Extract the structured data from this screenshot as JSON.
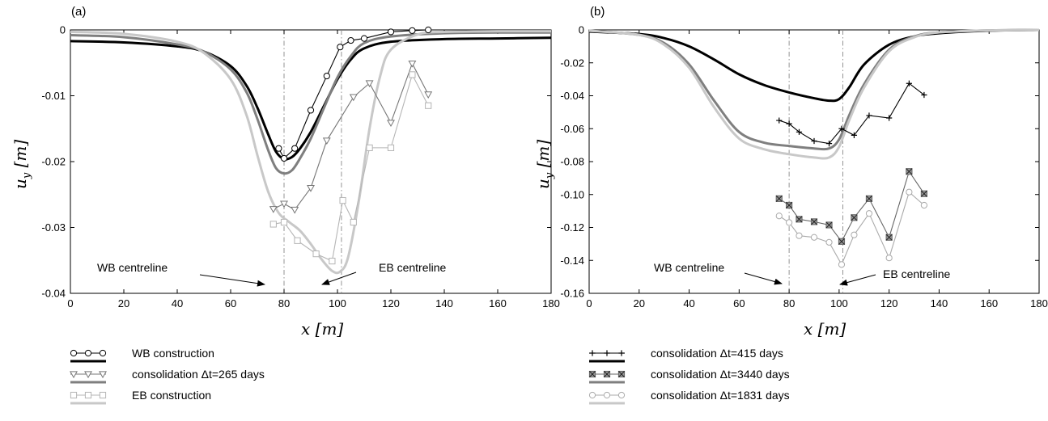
{
  "chart_data": [
    {
      "type": "line",
      "panel_label": "(a)",
      "xlabel_var": "x",
      "xlabel_unit": "[m]",
      "ylabel_var": "u",
      "ylabel_sub": "y",
      "ylabel_unit": "[m]",
      "xlim": [
        0,
        180
      ],
      "ylim": [
        -0.04,
        0
      ],
      "xticks": [
        0,
        20,
        40,
        60,
        80,
        100,
        120,
        140,
        160,
        180
      ],
      "xtick_labels": [
        "0",
        "20",
        "40",
        "60",
        "80",
        "100",
        "120",
        "140",
        "160",
        "180"
      ],
      "yticks": [
        0,
        -0.01,
        -0.02,
        -0.03,
        -0.04
      ],
      "ytick_labels": [
        "0",
        "-0.01",
        "-0.02",
        "-0.03",
        "-0.04"
      ],
      "vlines": [
        80,
        101.5
      ],
      "annotations": [
        {
          "text": "WB centreline",
          "target": [
            80,
            -0.04
          ]
        },
        {
          "text": "EB centreline",
          "target": [
            101.5,
            -0.04
          ]
        }
      ],
      "series": [
        {
          "name": "WB construction",
          "kind": "measured",
          "marker": "circle",
          "color": "#000000",
          "x": [
            78,
            80,
            84,
            90,
            96,
            101,
            105,
            110,
            120,
            128,
            134
          ],
          "y": [
            -0.018,
            -0.0195,
            -0.018,
            -0.0122,
            -0.007,
            -0.0026,
            -0.0016,
            -0.0013,
            -0.0003,
            -0.0001,
            0
          ]
        },
        {
          "name": "consolidation Δt=265 days",
          "kind": "measured",
          "marker": "triangle",
          "color": "#777777",
          "x": [
            76,
            80,
            84,
            90,
            96,
            106,
            112,
            120,
            128,
            134
          ],
          "y": [
            -0.0272,
            -0.0264,
            -0.0273,
            -0.024,
            -0.0168,
            -0.0102,
            -0.0081,
            -0.0141,
            -0.0051,
            -0.0098
          ]
        },
        {
          "name": "EB construction",
          "kind": "measured",
          "marker": "square",
          "color": "#b5b5b5",
          "x": [
            76,
            80,
            85,
            92,
            98,
            102,
            106,
            112,
            120,
            128,
            134
          ],
          "y": [
            -0.0295,
            -0.0292,
            -0.032,
            -0.034,
            -0.0351,
            -0.0259,
            -0.0292,
            -0.0179,
            -0.0179,
            -0.0068,
            -0.0115
          ]
        },
        {
          "name": "WB construction",
          "kind": "fem",
          "color": "#000000",
          "x": [
            0,
            20,
            40,
            50,
            60,
            66,
            70,
            74,
            77,
            80,
            83,
            86,
            90,
            95,
            100,
            105,
            110,
            120,
            140,
            160,
            180
          ],
          "y": [
            -0.0017,
            -0.0019,
            -0.0025,
            -0.0033,
            -0.0055,
            -0.0085,
            -0.0118,
            -0.0158,
            -0.0185,
            -0.0196,
            -0.0193,
            -0.018,
            -0.0155,
            -0.0115,
            -0.0075,
            -0.0045,
            -0.0028,
            -0.0018,
            -0.0014,
            -0.0013,
            -0.0012
          ]
        },
        {
          "name": "consolidation Δt=265 days",
          "kind": "fem",
          "color": "#7f7f7f",
          "x": [
            0,
            20,
            40,
            50,
            60,
            66,
            70,
            74,
            77,
            80,
            83,
            86,
            90,
            95,
            100,
            105,
            110,
            120,
            140,
            160,
            180
          ],
          "y": [
            -0.0008,
            -0.0011,
            -0.0022,
            -0.0033,
            -0.006,
            -0.0095,
            -0.0135,
            -0.0182,
            -0.021,
            -0.0218,
            -0.0213,
            -0.0195,
            -0.0165,
            -0.0118,
            -0.0072,
            -0.004,
            -0.002,
            -0.001,
            -0.0005,
            -0.0004,
            -0.0004
          ]
        },
        {
          "name": "EB construction",
          "kind": "fem",
          "color": "#c8c8c8",
          "x": [
            0,
            20,
            40,
            50,
            60,
            66,
            70,
            74,
            78,
            82,
            86,
            90,
            94,
            98,
            101,
            104,
            108,
            112,
            116,
            120,
            130,
            140,
            160,
            180
          ],
          "y": [
            -0.0003,
            -0.0006,
            -0.0018,
            -0.0035,
            -0.0075,
            -0.013,
            -0.019,
            -0.0245,
            -0.0278,
            -0.0292,
            -0.0305,
            -0.0325,
            -0.0348,
            -0.0366,
            -0.0367,
            -0.0345,
            -0.026,
            -0.015,
            -0.007,
            -0.003,
            -0.0007,
            -0.0003,
            -0.0002,
            -0.0002
          ]
        }
      ],
      "legend": [
        {
          "label": "WB construction",
          "marker": "circle",
          "marker_color": "#000000",
          "line_color": "#000000"
        },
        {
          "label": "consolidation Δt=265 days",
          "marker": "triangle",
          "marker_color": "#777777",
          "line_color": "#7f7f7f"
        },
        {
          "label": "EB construction",
          "marker": "square",
          "marker_color": "#b5b5b5",
          "line_color": "#c8c8c8"
        }
      ]
    },
    {
      "type": "line",
      "panel_label": "(b)",
      "xlabel_var": "x",
      "xlabel_unit": "[m]",
      "ylabel_var": "u",
      "ylabel_sub": "y",
      "ylabel_unit": "[m]",
      "xlim": [
        0,
        180
      ],
      "ylim": [
        -0.16,
        0
      ],
      "xticks": [
        0,
        20,
        40,
        60,
        80,
        100,
        120,
        140,
        160,
        180
      ],
      "xtick_labels": [
        "0",
        "20",
        "40",
        "60",
        "80",
        "100",
        "120",
        "140",
        "160",
        "180"
      ],
      "yticks": [
        0,
        -0.02,
        -0.04,
        -0.06,
        -0.08,
        -0.1,
        -0.12,
        -0.14,
        -0.16
      ],
      "ytick_labels": [
        "0",
        "-0.02",
        "-0.04",
        "-0.06",
        "-0.08",
        "-0.10",
        "-0.12",
        "-0.14",
        "-0.16"
      ],
      "vlines": [
        80,
        101.5
      ],
      "annotations": [
        {
          "text": "WB centreline",
          "target": [
            80,
            -0.16
          ]
        },
        {
          "text": "EB centreline",
          "target": [
            101.5,
            -0.16
          ]
        }
      ],
      "series": [
        {
          "name": "consolidation Δt=415 days",
          "kind": "measured",
          "marker": "plus",
          "color": "#000000",
          "x": [
            76,
            80,
            84,
            90,
            96,
            101,
            106,
            112,
            120,
            128,
            134
          ],
          "y": [
            -0.055,
            -0.057,
            -0.062,
            -0.0675,
            -0.069,
            -0.06,
            -0.064,
            -0.052,
            -0.0535,
            -0.0325,
            -0.0395
          ]
        },
        {
          "name": "consolidation Δt=3440 days",
          "kind": "measured",
          "marker": "xsquare",
          "color": "#666666",
          "x": [
            76,
            80,
            84,
            90,
            96,
            101,
            106,
            112,
            120,
            128,
            134
          ],
          "y": [
            -0.1025,
            -0.1065,
            -0.115,
            -0.1165,
            -0.1185,
            -0.1285,
            -0.114,
            -0.1025,
            -0.126,
            -0.086,
            -0.0995
          ]
        },
        {
          "name": "consolidation Δt=1831 days",
          "kind": "measured",
          "marker": "circle",
          "color": "#aaaaaa",
          "x": [
            76,
            80,
            84,
            90,
            96,
            101,
            106,
            112,
            120,
            128,
            134
          ],
          "y": [
            -0.113,
            -0.117,
            -0.125,
            -0.126,
            -0.129,
            -0.1425,
            -0.1245,
            -0.1115,
            -0.1385,
            -0.0985,
            -0.1065
          ]
        },
        {
          "name": "consolidation Δt=415 days",
          "kind": "fem",
          "color": "#000000",
          "x": [
            0,
            20,
            30,
            40,
            50,
            60,
            70,
            80,
            90,
            96,
            100,
            104,
            110,
            120,
            130,
            140,
            160,
            180
          ],
          "y": [
            -0.001,
            -0.0025,
            -0.005,
            -0.01,
            -0.018,
            -0.027,
            -0.0335,
            -0.038,
            -0.0415,
            -0.043,
            -0.042,
            -0.035,
            -0.021,
            -0.009,
            -0.004,
            -0.002,
            -0.0005,
            0
          ]
        },
        {
          "name": "consolidation Δt=3440 days",
          "kind": "fem",
          "color": "#7f7f7f",
          "x": [
            0,
            20,
            30,
            40,
            50,
            60,
            70,
            80,
            90,
            96,
            100,
            104,
            110,
            120,
            130,
            140,
            160,
            180
          ],
          "y": [
            -0.0005,
            -0.003,
            -0.008,
            -0.021,
            -0.043,
            -0.062,
            -0.0685,
            -0.0705,
            -0.072,
            -0.072,
            -0.0665,
            -0.052,
            -0.033,
            -0.012,
            -0.004,
            -0.0015,
            -0.0003,
            0
          ]
        },
        {
          "name": "consolidation Δt=1831 days",
          "kind": "fem",
          "color": "#c8c8c8",
          "x": [
            0,
            20,
            30,
            40,
            50,
            60,
            70,
            80,
            90,
            96,
            100,
            104,
            110,
            120,
            130,
            140,
            160,
            180
          ],
          "y": [
            -0.0005,
            -0.003,
            -0.009,
            -0.023,
            -0.047,
            -0.066,
            -0.0725,
            -0.0755,
            -0.0775,
            -0.0775,
            -0.071,
            -0.055,
            -0.035,
            -0.013,
            -0.0045,
            -0.0015,
            -0.0003,
            0
          ]
        }
      ],
      "legend": [
        {
          "label": "consolidation Δt=415 days",
          "marker": "plus",
          "marker_color": "#000000",
          "line_color": "#000000"
        },
        {
          "label": "consolidation Δt=3440 days",
          "marker": "xsquare",
          "marker_color": "#666666",
          "line_color": "#7f7f7f"
        },
        {
          "label": "consolidation Δt=1831 days",
          "marker": "circle",
          "marker_color": "#aaaaaa",
          "line_color": "#c8c8c8"
        }
      ]
    }
  ]
}
